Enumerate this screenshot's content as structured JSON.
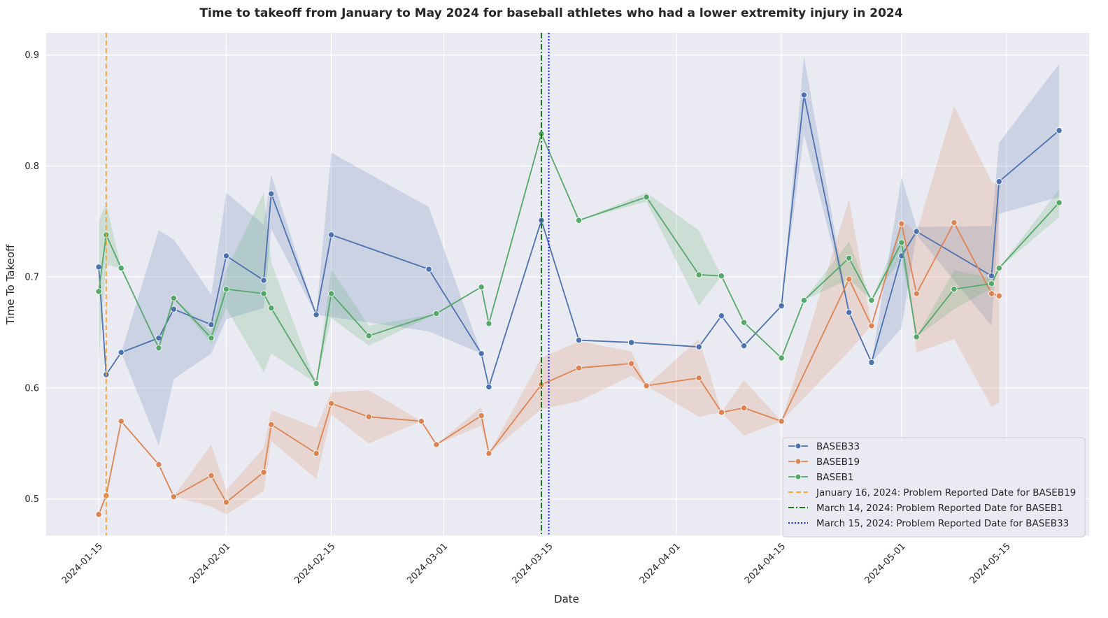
{
  "chart_data": {
    "type": "line",
    "title": "Time to takeoff from January to May 2024 for baseball athletes who had a lower extremity injury in 2024",
    "xlabel": "Date",
    "ylabel": "Time To Takeoff",
    "x_ticks": [
      "2024-01-15",
      "2024-02-01",
      "2024-02-15",
      "2024-03-01",
      "2024-03-15",
      "2024-04-01",
      "2024-04-15",
      "2024-05-01",
      "2024-05-15"
    ],
    "y_ticks": [
      "0.5",
      "0.6",
      "0.7",
      "0.8",
      "0.9"
    ],
    "xlim": [
      "2024-01-08",
      "2024-05-26"
    ],
    "ylim": [
      0.467,
      0.92
    ],
    "grid": true,
    "legend_position": "lower-right",
    "series": [
      {
        "name": "BASEB33",
        "color": "#4c72b0",
        "points": [
          {
            "date": "2024-01-15",
            "y": 0.709
          },
          {
            "date": "2024-01-16",
            "y": 0.612
          },
          {
            "date": "2024-01-18",
            "y": 0.632
          },
          {
            "date": "2024-01-23",
            "y": 0.645,
            "lo": 0.548,
            "hi": 0.742
          },
          {
            "date": "2024-01-25",
            "y": 0.671,
            "lo": 0.608,
            "hi": 0.734
          },
          {
            "date": "2024-01-30",
            "y": 0.657,
            "lo": 0.631,
            "hi": 0.684
          },
          {
            "date": "2024-02-01",
            "y": 0.719,
            "lo": 0.662,
            "hi": 0.776
          },
          {
            "date": "2024-02-06",
            "y": 0.697,
            "lo": 0.672,
            "hi": 0.747
          },
          {
            "date": "2024-02-07",
            "y": 0.775,
            "lo": 0.743,
            "hi": 0.792
          },
          {
            "date": "2024-02-13",
            "y": 0.666
          },
          {
            "date": "2024-02-15",
            "y": 0.738,
            "lo": 0.664,
            "hi": 0.812
          },
          {
            "date": "2024-02-28",
            "y": 0.707,
            "lo": 0.651,
            "hi": 0.763
          },
          {
            "date": "2024-03-06",
            "y": 0.631
          },
          {
            "date": "2024-03-07",
            "y": 0.601
          },
          {
            "date": "2024-03-14",
            "y": 0.751
          },
          {
            "date": "2024-03-19",
            "y": 0.643
          },
          {
            "date": "2024-03-26",
            "y": 0.641
          },
          {
            "date": "2024-04-04",
            "y": 0.637
          },
          {
            "date": "2024-04-07",
            "y": 0.665
          },
          {
            "date": "2024-04-10",
            "y": 0.638
          },
          {
            "date": "2024-04-15",
            "y": 0.674
          },
          {
            "date": "2024-04-18",
            "y": 0.864,
            "lo": 0.829,
            "hi": 0.899
          },
          {
            "date": "2024-04-24",
            "y": 0.668
          },
          {
            "date": "2024-04-27",
            "y": 0.623
          },
          {
            "date": "2024-05-01",
            "y": 0.719,
            "lo": 0.654,
            "hi": 0.79
          },
          {
            "date": "2024-05-03",
            "y": 0.741,
            "lo": 0.738,
            "hi": 0.745
          },
          {
            "date": "2024-05-13",
            "y": 0.701,
            "lo": 0.656,
            "hi": 0.746
          },
          {
            "date": "2024-05-14",
            "y": 0.786,
            "lo": 0.757,
            "hi": 0.821
          },
          {
            "date": "2024-05-22",
            "y": 0.832,
            "lo": 0.772,
            "hi": 0.892
          }
        ]
      },
      {
        "name": "BASEB19",
        "color": "#dd8452",
        "points": [
          {
            "date": "2024-01-15",
            "y": 0.486
          },
          {
            "date": "2024-01-16",
            "y": 0.503
          },
          {
            "date": "2024-01-18",
            "y": 0.57
          },
          {
            "date": "2024-01-23",
            "y": 0.531
          },
          {
            "date": "2024-01-25",
            "y": 0.502
          },
          {
            "date": "2024-01-30",
            "y": 0.521,
            "lo": 0.493,
            "hi": 0.549
          },
          {
            "date": "2024-02-01",
            "y": 0.497,
            "lo": 0.486,
            "hi": 0.508
          },
          {
            "date": "2024-02-06",
            "y": 0.524,
            "lo": 0.507,
            "hi": 0.546
          },
          {
            "date": "2024-02-07",
            "y": 0.567,
            "lo": 0.552,
            "hi": 0.58
          },
          {
            "date": "2024-02-13",
            "y": 0.541,
            "lo": 0.518,
            "hi": 0.564
          },
          {
            "date": "2024-02-15",
            "y": 0.586,
            "lo": 0.576,
            "hi": 0.596
          },
          {
            "date": "2024-02-20",
            "y": 0.574,
            "lo": 0.55,
            "hi": 0.598
          },
          {
            "date": "2024-02-27",
            "y": 0.57
          },
          {
            "date": "2024-02-29",
            "y": 0.549
          },
          {
            "date": "2024-03-06",
            "y": 0.575,
            "lo": 0.566,
            "hi": 0.583
          },
          {
            "date": "2024-03-07",
            "y": 0.541
          },
          {
            "date": "2024-03-14",
            "y": 0.603,
            "lo": 0.581,
            "hi": 0.627
          },
          {
            "date": "2024-03-19",
            "y": 0.618,
            "lo": 0.588,
            "hi": 0.642
          },
          {
            "date": "2024-03-26",
            "y": 0.622,
            "lo": 0.611,
            "hi": 0.633
          },
          {
            "date": "2024-03-28",
            "y": 0.602
          },
          {
            "date": "2024-04-04",
            "y": 0.609,
            "lo": 0.574,
            "hi": 0.644
          },
          {
            "date": "2024-04-07",
            "y": 0.578
          },
          {
            "date": "2024-04-10",
            "y": 0.582,
            "lo": 0.557,
            "hi": 0.607
          },
          {
            "date": "2024-04-15",
            "y": 0.57
          },
          {
            "date": "2024-04-24",
            "y": 0.698,
            "lo": 0.633,
            "hi": 0.77
          },
          {
            "date": "2024-04-27",
            "y": 0.656
          },
          {
            "date": "2024-05-01",
            "y": 0.748,
            "lo": 0.745,
            "hi": 0.751
          },
          {
            "date": "2024-05-03",
            "y": 0.685,
            "lo": 0.632,
            "hi": 0.74
          },
          {
            "date": "2024-05-08",
            "y": 0.749,
            "lo": 0.644,
            "hi": 0.854
          },
          {
            "date": "2024-05-13",
            "y": 0.685,
            "lo": 0.583,
            "hi": 0.786
          },
          {
            "date": "2024-05-14",
            "y": 0.683,
            "lo": 0.587,
            "hi": 0.781
          }
        ]
      },
      {
        "name": "BASEB1",
        "color": "#55a868",
        "points": [
          {
            "date": "2024-01-15",
            "y": 0.687,
            "lo": 0.623,
            "hi": 0.751
          },
          {
            "date": "2024-01-16",
            "y": 0.738,
            "lo": 0.711,
            "hi": 0.766
          },
          {
            "date": "2024-01-18",
            "y": 0.708
          },
          {
            "date": "2024-01-23",
            "y": 0.636
          },
          {
            "date": "2024-01-25",
            "y": 0.681
          },
          {
            "date": "2024-01-30",
            "y": 0.645,
            "lo": 0.64,
            "hi": 0.65
          },
          {
            "date": "2024-02-01",
            "y": 0.689,
            "lo": 0.672,
            "hi": 0.706
          },
          {
            "date": "2024-02-06",
            "y": 0.685,
            "lo": 0.614,
            "hi": 0.776
          },
          {
            "date": "2024-02-07",
            "y": 0.672,
            "lo": 0.631,
            "hi": 0.713
          },
          {
            "date": "2024-02-13",
            "y": 0.604
          },
          {
            "date": "2024-02-15",
            "y": 0.685,
            "lo": 0.663,
            "hi": 0.707
          },
          {
            "date": "2024-02-20",
            "y": 0.647,
            "lo": 0.638,
            "hi": 0.656
          },
          {
            "date": "2024-02-29",
            "y": 0.667
          },
          {
            "date": "2024-03-06",
            "y": 0.691
          },
          {
            "date": "2024-03-07",
            "y": 0.658
          },
          {
            "date": "2024-03-14",
            "y": 0.829
          },
          {
            "date": "2024-03-19",
            "y": 0.751
          },
          {
            "date": "2024-03-28",
            "y": 0.772,
            "lo": 0.768,
            "hi": 0.776
          },
          {
            "date": "2024-04-04",
            "y": 0.702,
            "lo": 0.674,
            "hi": 0.742
          },
          {
            "date": "2024-04-07",
            "y": 0.701
          },
          {
            "date": "2024-04-10",
            "y": 0.659
          },
          {
            "date": "2024-04-15",
            "y": 0.627
          },
          {
            "date": "2024-04-18",
            "y": 0.679
          },
          {
            "date": "2024-04-24",
            "y": 0.717,
            "lo": 0.698,
            "hi": 0.732
          },
          {
            "date": "2024-04-27",
            "y": 0.679
          },
          {
            "date": "2024-05-01",
            "y": 0.731,
            "lo": 0.717,
            "hi": 0.745
          },
          {
            "date": "2024-05-03",
            "y": 0.646
          },
          {
            "date": "2024-05-08",
            "y": 0.689,
            "lo": 0.671,
            "hi": 0.706
          },
          {
            "date": "2024-05-13",
            "y": 0.694,
            "lo": 0.69,
            "hi": 0.699
          },
          {
            "date": "2024-05-14",
            "y": 0.708
          },
          {
            "date": "2024-05-22",
            "y": 0.767,
            "lo": 0.754,
            "hi": 0.779
          }
        ]
      }
    ],
    "reference_lines": [
      {
        "date": "2024-01-16",
        "label": "January 16, 2024: Problem Reported Date for BASEB19",
        "color": "#ff9f1c",
        "style": "dashed"
      },
      {
        "date": "2024-03-14",
        "label": "March 14, 2024: Problem Reported Date for BASEB1",
        "color": "#006400",
        "style": "dashdot"
      },
      {
        "date": "2024-03-15",
        "label": "March 15, 2024: Problem Reported Date for BASEB33",
        "color": "#0000ff",
        "style": "dotted"
      }
    ]
  }
}
